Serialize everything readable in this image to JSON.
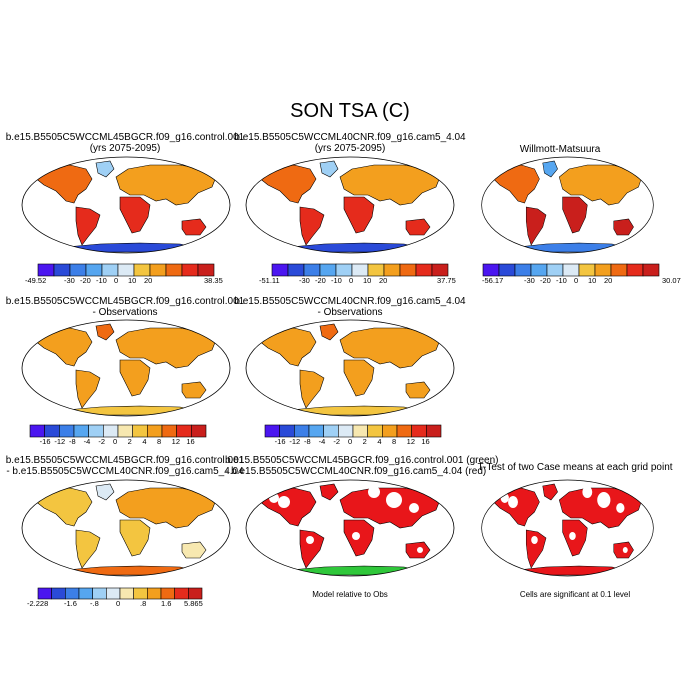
{
  "title": "SON TSA (C)",
  "colors": {
    "ocean": "#ffffff",
    "outline": "#000000",
    "ice": "#2a4ad8",
    "scale_abs": [
      "#4b16f0",
      "#2a4ad8",
      "#3c7fe8",
      "#56a6f0",
      "#9fd0f5",
      "#dceaf5",
      "#f3c540",
      "#f39f1e",
      "#ef6a12",
      "#e52b1c",
      "#c91f1c"
    ],
    "scale_diff": [
      "#4b16f0",
      "#2a4ad8",
      "#3c7fe8",
      "#56a6f0",
      "#9fd0f5",
      "#dceaf5",
      "#f7e8b0",
      "#f3c540",
      "#f39f1e",
      "#ef6a12",
      "#e52b1c",
      "#c91f1c"
    ],
    "sig_red": "#e8161a",
    "sig_green": "#2fc73a"
  },
  "panels": [
    {
      "title1": "b.e15.B5505C5WCCML45BGCR.f09_g16.control.001",
      "title2": "(yrs 2075-2095)",
      "colorbar": {
        "min_label": "-49.52",
        "max_label": "38.35",
        "ticks": [
          "-30",
          "-20",
          "-10",
          "0",
          "10",
          "20"
        ]
      }
    },
    {
      "title1": "b.e15.B5505C5WCCML40CNR.f09_g16.cam5_4.04",
      "title2": "(yrs 2075-2095)",
      "colorbar": {
        "min_label": "-51.11",
        "max_label": "37.75",
        "ticks": [
          "-30",
          "-20",
          "-10",
          "0",
          "10",
          "20"
        ]
      }
    },
    {
      "title1": "Willmott-Matsuura",
      "title2": "",
      "colorbar": {
        "min_label": "-56.17",
        "max_label": "30.07",
        "ticks": [
          "-30",
          "-20",
          "-10",
          "0",
          "10",
          "20"
        ]
      }
    },
    {
      "title1": "b.e15.B5505C5WCCML45BGCR.f09_g16.control.001",
      "title2": "- Observations",
      "colorbar": {
        "min_label": "",
        "max_label": "",
        "ticks": [
          "-16",
          "-12",
          "-8",
          "-4",
          "-2",
          "0",
          "2",
          "4",
          "8",
          "12",
          "16"
        ]
      }
    },
    {
      "title1": "b.e15.B5505C5WCCML40CNR.f09_g16.cam5_4.04",
      "title2": "- Observations",
      "colorbar": {
        "min_label": "",
        "max_label": "",
        "ticks": [
          "-16",
          "-12",
          "-8",
          "-4",
          "-2",
          "0",
          "2",
          "4",
          "8",
          "12",
          "16"
        ]
      }
    },
    {
      "title1": "b.e15.B5505C5WCCML45BGCR.f09_g16.control.001",
      "title2": "- b.e15.B5505C5WCCML40CNR.f09_g16.cam5_4.04",
      "colorbar": {
        "min_label": "-2.228",
        "max_label": "5.865",
        "ticks": [
          "-1.6",
          "-.8",
          "0",
          ".8",
          "1.6"
        ]
      }
    },
    {
      "title1": "b.e15.B5505C5WCCML45BGCR.f09_g16.control.001 (green)",
      "title2": "- b.e15.B5505C5WCCML40CNR.f09_g16.cam5_4.04 (red)",
      "note": "Model relative to Obs"
    },
    {
      "title1": "T-Test of two Case means at each grid point",
      "title2": "",
      "note": "Cells are significant at 0.1 level"
    }
  ]
}
